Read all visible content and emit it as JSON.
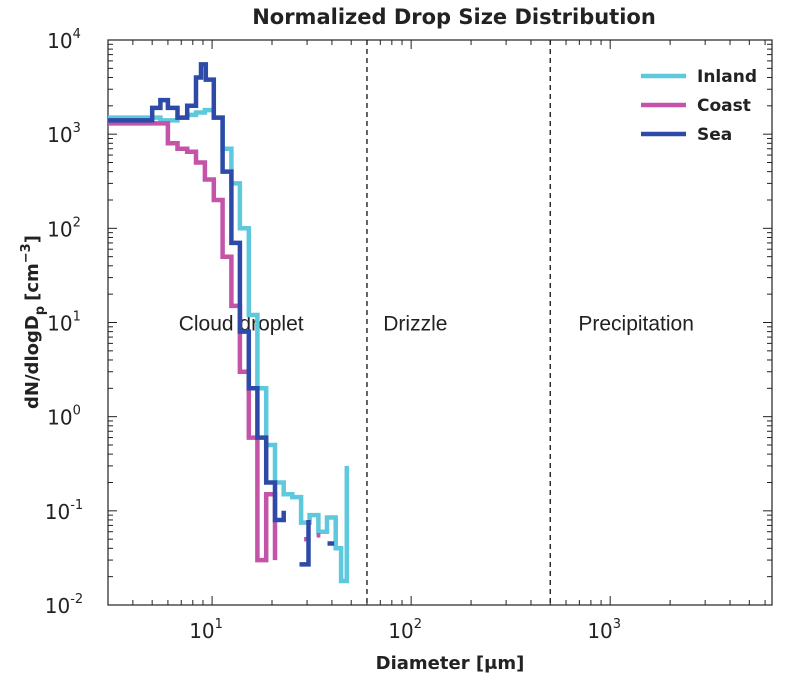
{
  "chart_data": {
    "type": "line",
    "title": "Normalized Drop Size Distribution",
    "xlabel": "Diameter [μm]",
    "ylabel": "dN/dlogD",
    "ylabel_sub": "p",
    "ylabel_unit": "[cm",
    "ylabel_unit_sup": "−3",
    "ylabel_unit_end": "]",
    "xscale": "log",
    "yscale": "log",
    "xlim": [
      3,
      6500
    ],
    "ylim": [
      0.01,
      10000
    ],
    "x_ticks": [
      {
        "value": 10,
        "base": "10",
        "exp": "1"
      },
      {
        "value": 100,
        "base": "10",
        "exp": "2"
      },
      {
        "value": 1000,
        "base": "10",
        "exp": "3"
      }
    ],
    "y_ticks": [
      {
        "value": 0.01,
        "base": "10",
        "exp": "-2"
      },
      {
        "value": 0.1,
        "base": "10",
        "exp": "-1"
      },
      {
        "value": 1,
        "base": "10",
        "exp": "0"
      },
      {
        "value": 10,
        "base": "10",
        "exp": "1"
      },
      {
        "value": 100,
        "base": "10",
        "exp": "2"
      },
      {
        "value": 1000,
        "base": "10",
        "exp": "3"
      },
      {
        "value": 10000,
        "base": "10",
        "exp": "4"
      }
    ],
    "vlines": [
      60,
      500
    ],
    "regions": [
      {
        "label": "Cloud droplet",
        "x": 14,
        "y": 10
      },
      {
        "label": "Drizzle",
        "x": 105,
        "y": 10
      },
      {
        "label": "Precipitation",
        "x": 1350,
        "y": 10
      }
    ],
    "legend_position": "top-right",
    "series": [
      {
        "name": "Inland",
        "color": "#5ec8dc",
        "edges": [
          3.0,
          5.5,
          6.7,
          7.5,
          8.3,
          9.2,
          10.2,
          11.3,
          12.5,
          13.8,
          15.3,
          16.9,
          18.7,
          20.7,
          22.9,
          25.3,
          28.0,
          30.9,
          34.2,
          37.8,
          41.8,
          44.5,
          47.5
        ],
        "values": [
          1500,
          1400,
          1500,
          1600,
          1700,
          1800,
          1500,
          700,
          300,
          100,
          12,
          2,
          0.5,
          0.2,
          0.15,
          0.14,
          0.075,
          0.09,
          0.06,
          0.085,
          0.04,
          0.018,
          0.3
        ]
      },
      {
        "name": "Coast",
        "color": "#c454a7",
        "edges": [
          3.0,
          6.0,
          6.7,
          7.5,
          8.3,
          9.2,
          10.2,
          11.3,
          12.5,
          13.8,
          15.3,
          16.9,
          18.7,
          20.7
        ],
        "values": [
          1300,
          800,
          700,
          650,
          500,
          330,
          200,
          50,
          15,
          3,
          0.6,
          0.03,
          0.15,
          0.03
        ]
      },
      {
        "name": "Sea",
        "color": "#2e4aa8",
        "edges": [
          3.0,
          5.0,
          5.5,
          6.0,
          6.7,
          7.5,
          8.3,
          8.8,
          9.3,
          10.2,
          11.3,
          12.5,
          13.8,
          15.3,
          16.9,
          18.7,
          20.7,
          22.9
        ],
        "values": [
          1400,
          1900,
          2300,
          1900,
          1500,
          2000,
          4000,
          5500,
          3800,
          1500,
          400,
          70,
          8,
          2,
          0.6,
          0.2,
          0.08,
          0.1
        ]
      }
    ],
    "fragments": [
      {
        "series": "Coast",
        "x": [
          29.0,
          30.5
        ],
        "value": 0.05
      },
      {
        "series": "Coast",
        "x": [
          33.5,
          35.0
        ],
        "value": 0.055
      },
      {
        "series": "Sea",
        "x": [
          27.5,
          30.5
        ],
        "value": 0.027,
        "step_to": 0.08
      },
      {
        "series": "Sea",
        "x": [
          38.0,
          41.0
        ],
        "value": 0.045
      }
    ]
  }
}
